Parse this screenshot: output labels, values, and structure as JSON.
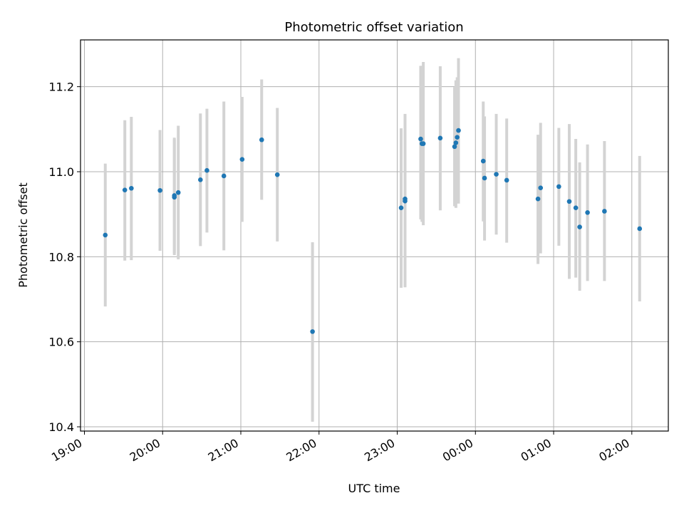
{
  "chart_data": {
    "type": "scatter",
    "title": "Photometric offset variation",
    "xlabel": "UTC time",
    "ylabel": "Photometric offset",
    "xlim": [
      "18:57",
      "02:28"
    ],
    "ylim": [
      10.39,
      11.31
    ],
    "x_ticks": [
      "19:00",
      "20:00",
      "21:00",
      "22:00",
      "23:00",
      "00:00",
      "01:00",
      "02:00"
    ],
    "y_ticks": [
      "10.4",
      "10.6",
      "10.8",
      "11.0",
      "11.2"
    ],
    "grid": true,
    "colors": {
      "points": "#1f77b4",
      "error_bars": "#d3d3d3",
      "grid": "#b0b0b0"
    },
    "points": [
      {
        "x": "19:16",
        "y": 10.851,
        "lo": 10.683,
        "hi": 11.019
      },
      {
        "x": "19:31",
        "y": 10.957,
        "lo": 10.791,
        "hi": 11.121
      },
      {
        "x": "19:36",
        "y": 10.961,
        "lo": 10.792,
        "hi": 11.129
      },
      {
        "x": "19:58",
        "y": 10.956,
        "lo": 10.814,
        "hi": 11.098
      },
      {
        "x": "20:09",
        "y": 10.944,
        "lo": 10.808,
        "hi": 11.08
      },
      {
        "x": "20:09",
        "y": 10.94,
        "lo": 10.804,
        "hi": 11.076
      },
      {
        "x": "20:12",
        "y": 10.951,
        "lo": 10.794,
        "hi": 11.108
      },
      {
        "x": "20:29",
        "y": 10.981,
        "lo": 10.825,
        "hi": 11.137
      },
      {
        "x": "20:34",
        "y": 11.003,
        "lo": 10.857,
        "hi": 11.148
      },
      {
        "x": "20:47",
        "y": 10.99,
        "lo": 10.815,
        "hi": 11.165
      },
      {
        "x": "21:01",
        "y": 11.029,
        "lo": 10.882,
        "hi": 11.176
      },
      {
        "x": "21:16",
        "y": 11.075,
        "lo": 10.934,
        "hi": 11.217
      },
      {
        "x": "21:28",
        "y": 10.993,
        "lo": 10.836,
        "hi": 11.15
      },
      {
        "x": "21:55",
        "y": 10.624,
        "lo": 10.412,
        "hi": 10.834
      },
      {
        "x": "23:03",
        "y": 10.915,
        "lo": 10.727,
        "hi": 11.102
      },
      {
        "x": "23:06",
        "y": 10.936,
        "lo": 10.734,
        "hi": 11.136
      },
      {
        "x": "23:06",
        "y": 10.931,
        "lo": 10.728,
        "hi": 11.133
      },
      {
        "x": "23:18",
        "y": 11.077,
        "lo": 10.888,
        "hi": 11.249
      },
      {
        "x": "23:19",
        "y": 11.066,
        "lo": 10.882,
        "hi": 11.249
      },
      {
        "x": "23:20",
        "y": 11.066,
        "lo": 10.874,
        "hi": 11.258
      },
      {
        "x": "23:33",
        "y": 11.079,
        "lo": 10.909,
        "hi": 11.248
      },
      {
        "x": "23:44",
        "y": 11.059,
        "lo": 10.919,
        "hi": 11.199
      },
      {
        "x": "23:45",
        "y": 11.068,
        "lo": 10.915,
        "hi": 11.215
      },
      {
        "x": "23:46",
        "y": 11.081,
        "lo": 10.929,
        "hi": 11.222
      },
      {
        "x": "23:47",
        "y": 11.097,
        "lo": 10.925,
        "hi": 11.267
      },
      {
        "x": "00:06",
        "y": 11.025,
        "lo": 10.883,
        "hi": 11.165
      },
      {
        "x": "00:07",
        "y": 10.985,
        "lo": 10.838,
        "hi": 11.13
      },
      {
        "x": "00:16",
        "y": 10.994,
        "lo": 10.852,
        "hi": 11.136
      },
      {
        "x": "00:24",
        "y": 10.98,
        "lo": 10.833,
        "hi": 11.125
      },
      {
        "x": "00:48",
        "y": 10.936,
        "lo": 10.783,
        "hi": 11.087
      },
      {
        "x": "00:50",
        "y": 10.962,
        "lo": 10.808,
        "hi": 11.115
      },
      {
        "x": "01:04",
        "y": 10.965,
        "lo": 10.826,
        "hi": 11.103
      },
      {
        "x": "01:12",
        "y": 10.93,
        "lo": 10.748,
        "hi": 11.112
      },
      {
        "x": "01:17",
        "y": 10.915,
        "lo": 10.751,
        "hi": 11.077
      },
      {
        "x": "01:20",
        "y": 10.87,
        "lo": 10.72,
        "hi": 11.022
      },
      {
        "x": "01:26",
        "y": 10.904,
        "lo": 10.743,
        "hi": 11.064
      },
      {
        "x": "01:39",
        "y": 10.907,
        "lo": 10.743,
        "hi": 11.072
      },
      {
        "x": "02:06",
        "y": 10.866,
        "lo": 10.695,
        "hi": 11.037
      }
    ]
  }
}
